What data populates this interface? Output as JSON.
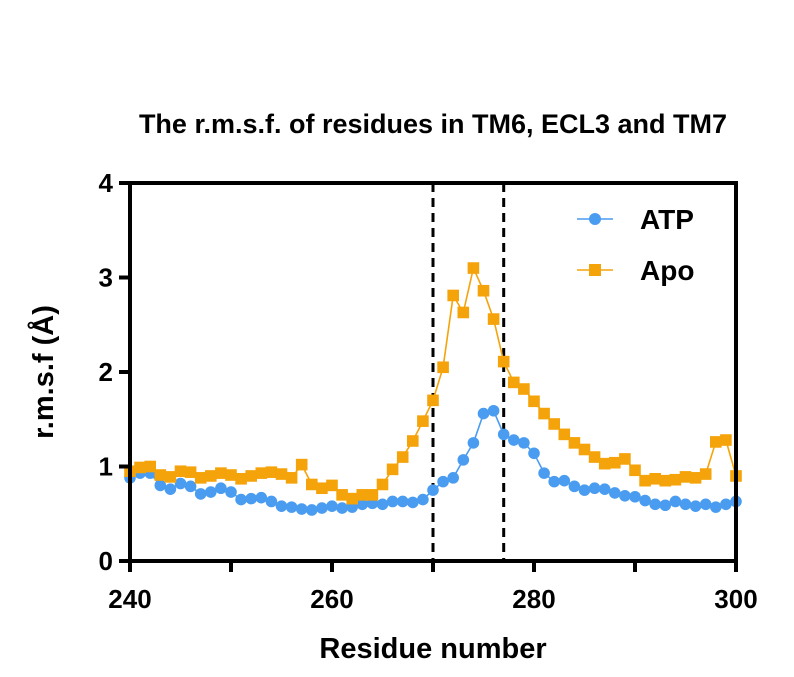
{
  "chart_data": {
    "type": "line",
    "title": "The r.m.s.f. of residues in TM6, ECL3 and TM7",
    "xlabel": "Residue number",
    "ylabel": "r.m.s.f (Å)",
    "xlim": [
      240,
      300
    ],
    "ylim": [
      0,
      4
    ],
    "xticks": [
      240,
      260,
      280,
      300
    ],
    "yticks": [
      0,
      1,
      2,
      3,
      4
    ],
    "reference_lines_x": [
      270,
      277
    ],
    "legend_position": "top-right",
    "x": [
      240,
      241,
      242,
      243,
      244,
      245,
      246,
      247,
      248,
      249,
      250,
      251,
      252,
      253,
      254,
      255,
      256,
      257,
      258,
      259,
      260,
      261,
      262,
      263,
      264,
      265,
      266,
      267,
      268,
      269,
      270,
      271,
      272,
      273,
      274,
      275,
      276,
      277,
      278,
      279,
      280,
      281,
      282,
      283,
      284,
      285,
      286,
      287,
      288,
      289,
      290,
      291,
      292,
      293,
      294,
      295,
      296,
      297,
      298,
      299,
      300
    ],
    "series": [
      {
        "name": "ATP",
        "color": "#4a9cf0",
        "marker": "circle",
        "values": [
          0.88,
          0.93,
          0.93,
          0.8,
          0.76,
          0.82,
          0.79,
          0.71,
          0.73,
          0.77,
          0.73,
          0.65,
          0.66,
          0.67,
          0.63,
          0.58,
          0.57,
          0.55,
          0.54,
          0.56,
          0.58,
          0.56,
          0.57,
          0.6,
          0.61,
          0.6,
          0.63,
          0.63,
          0.62,
          0.65,
          0.75,
          0.84,
          0.88,
          1.07,
          1.25,
          1.56,
          1.59,
          1.34,
          1.28,
          1.25,
          1.14,
          0.93,
          0.84,
          0.85,
          0.79,
          0.75,
          0.77,
          0.76,
          0.72,
          0.69,
          0.68,
          0.64,
          0.6,
          0.59,
          0.63,
          0.6,
          0.58,
          0.6,
          0.57,
          0.6,
          0.63
        ]
      },
      {
        "name": "Apo",
        "color": "#f5a30a",
        "marker": "square",
        "values": [
          0.95,
          0.99,
          1.0,
          0.91,
          0.89,
          0.95,
          0.94,
          0.88,
          0.9,
          0.93,
          0.91,
          0.87,
          0.9,
          0.93,
          0.94,
          0.92,
          0.88,
          1.02,
          0.81,
          0.77,
          0.8,
          0.7,
          0.66,
          0.7,
          0.7,
          0.81,
          0.97,
          1.1,
          1.27,
          1.48,
          1.7,
          2.05,
          2.81,
          2.63,
          3.1,
          2.86,
          2.56,
          2.11,
          1.89,
          1.82,
          1.69,
          1.56,
          1.45,
          1.34,
          1.25,
          1.18,
          1.1,
          1.03,
          1.04,
          1.08,
          0.96,
          0.85,
          0.87,
          0.85,
          0.86,
          0.89,
          0.88,
          0.92,
          1.26,
          1.28,
          0.9
        ]
      }
    ]
  }
}
